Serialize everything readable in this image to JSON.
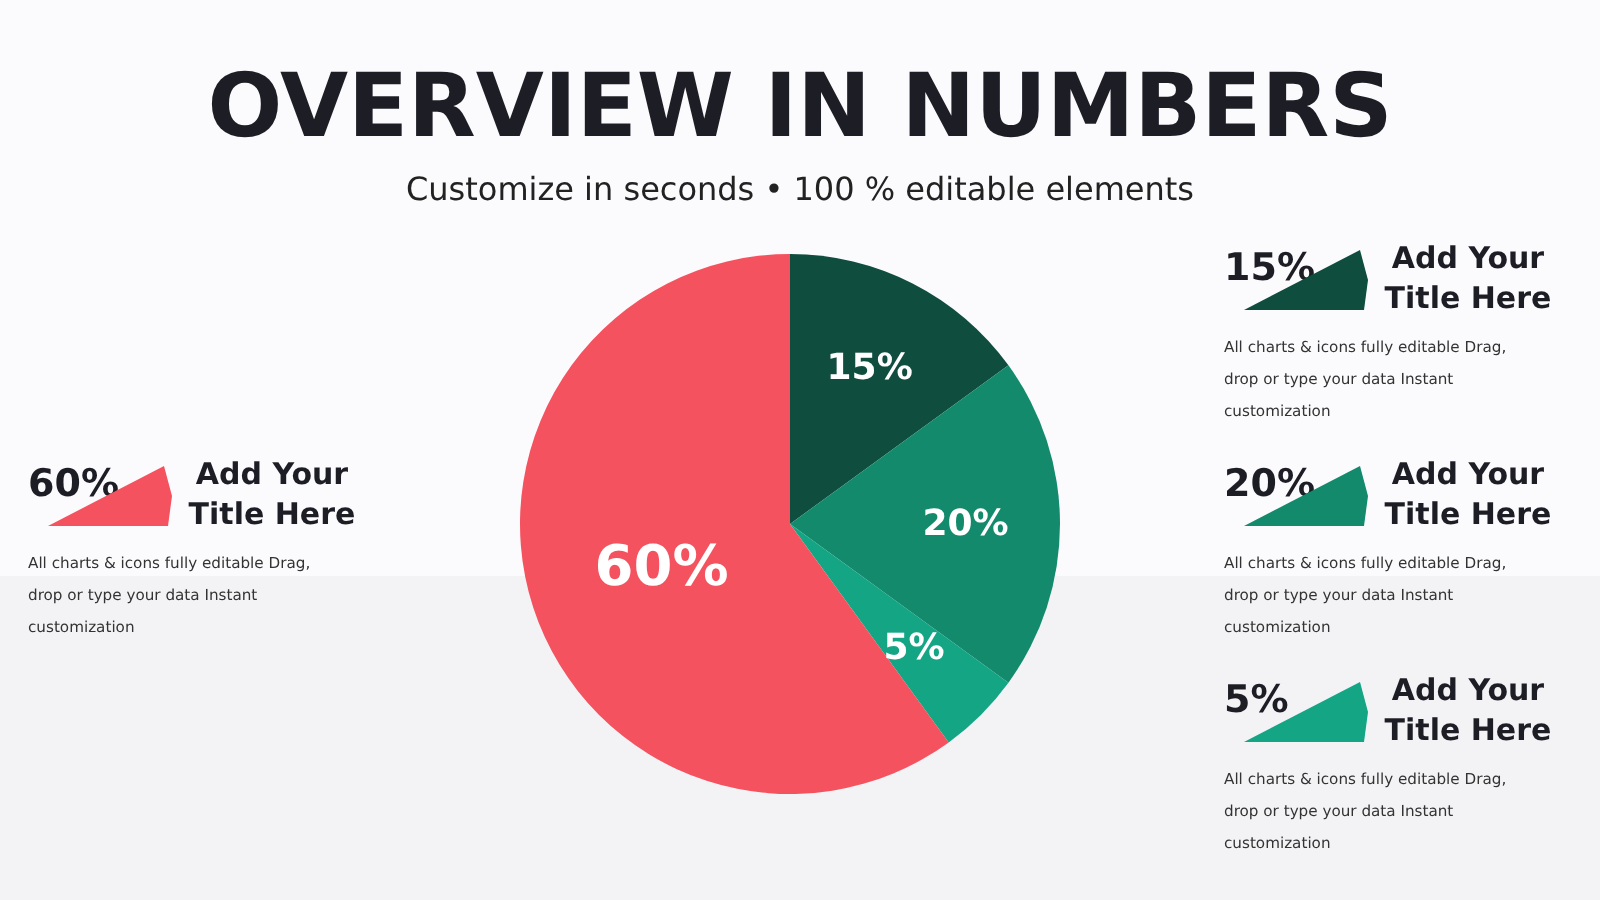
{
  "chart_data": {
    "type": "pie",
    "title": "OVERVIEW IN NUMBERS",
    "subtitle": "Customize in seconds • 100 % editable elements",
    "categories": [
      "Add Your Title Here",
      "Add Your Title Here",
      "Add Your Title Here",
      "Add Your Title Here"
    ],
    "values": [
      15,
      20,
      5,
      60
    ],
    "colors": [
      "#0f4d3e",
      "#138a6c",
      "#14a585",
      "#f5525f"
    ],
    "value_labels": [
      "15%",
      "20%",
      "5%",
      "60%"
    ],
    "annotations": [
      "All charts & icons fully editable Drag, drop or type your data Instant customization",
      "All charts & icons fully editable Drag, drop or type your data Instant customization",
      "All charts & icons fully editable Drag, drop or type your data Instant customization",
      "All charts & icons fully editable Drag, drop or type your data Instant customization"
    ]
  }
}
